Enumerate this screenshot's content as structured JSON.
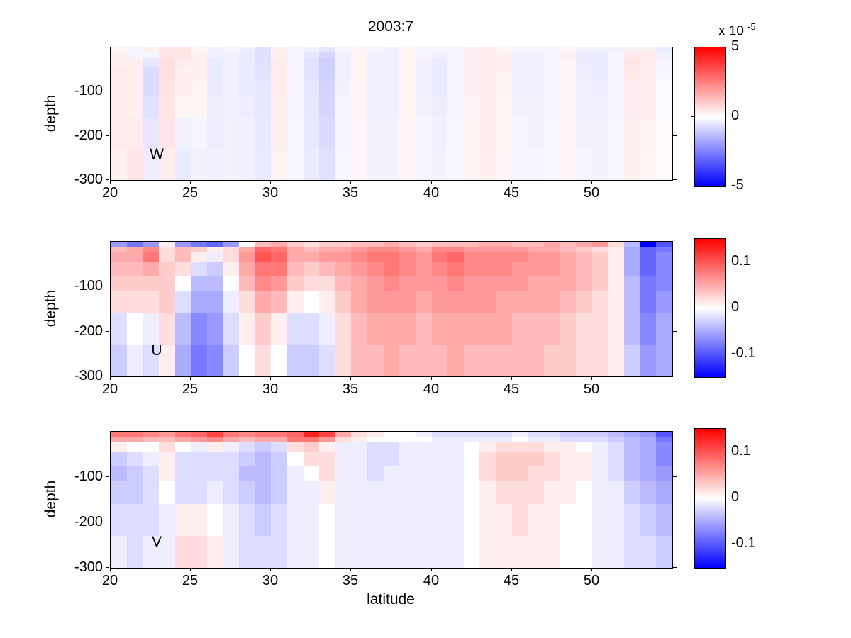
{
  "figure": {
    "background": "#ffffff",
    "axis_color": "#000000",
    "text_color": "#000000"
  },
  "colormap": {
    "positive": "#ff0000",
    "zero": "#ffffff",
    "negative": "#0000ff"
  },
  "chart_data": [
    {
      "type": "heatmap",
      "name": "W",
      "panel_label": "W",
      "title": "2003:7",
      "ylabel": "depth",
      "x_tick_labels": [
        "20",
        "25",
        "30",
        "35",
        "40",
        "45",
        "50"
      ],
      "x_tick_values": [
        20,
        25,
        30,
        35,
        40,
        45,
        50
      ],
      "y_tick_labels": [
        "-100",
        "-200",
        "-300"
      ],
      "y_tick_values": [
        -100,
        -200,
        -300
      ],
      "lat_edges": [
        20,
        55
      ],
      "depth_range": [
        0,
        -300
      ],
      "depth_edges": [
        0,
        -12,
        -24,
        -45,
        -75,
        -110,
        -160,
        -230,
        -300
      ],
      "value_units": "1e-5",
      "colorbar": {
        "clim": [
          -5,
          5
        ],
        "tick_labels": [
          "5",
          "0",
          "-5"
        ],
        "tick_values": [
          5,
          0,
          -5
        ],
        "exponent_label": {
          "prefix": "x 10",
          "exponent": "-5"
        }
      },
      "values": [
        [
          0.2,
          -0.2,
          0.3,
          0.5,
          0.5,
          0.2,
          -0.3,
          -0.2,
          -0.3,
          -0.6,
          0.3,
          -0.2,
          -0.3,
          -0.5,
          -0.2,
          0.2,
          -0.2,
          -0.3,
          0.2,
          -0.2,
          -0.2,
          -0.2,
          0.3,
          0.4,
          0.2,
          -0.2,
          -0.2,
          -0.2,
          0.2,
          -0.3,
          -0.3,
          -0.3,
          0.3,
          0.3,
          -0.4
        ],
        [
          0.3,
          -0.2,
          -0.2,
          0.5,
          0.5,
          0.3,
          -0.3,
          -0.3,
          -0.4,
          -0.6,
          0.3,
          -0.2,
          -0.5,
          -0.8,
          -0.3,
          0.2,
          -0.3,
          -0.3,
          0.2,
          -0.2,
          -0.3,
          -0.2,
          0.3,
          0.4,
          0.3,
          -0.3,
          -0.3,
          -0.2,
          0.3,
          -0.4,
          -0.4,
          -0.2,
          0.4,
          0.4,
          -0.3
        ],
        [
          0.3,
          0.3,
          -0.5,
          0.6,
          0.4,
          0.3,
          -0.4,
          -0.3,
          -0.4,
          -0.6,
          0.4,
          -0.2,
          -0.6,
          -0.95,
          -0.3,
          0.2,
          -0.3,
          -0.3,
          0.2,
          -0.3,
          -0.4,
          -0.2,
          0.3,
          0.4,
          0.3,
          -0.3,
          -0.3,
          -0.2,
          0.2,
          -0.4,
          -0.4,
          -0.2,
          0.5,
          0.35,
          -0.2
        ],
        [
          0.4,
          0.3,
          -0.7,
          0.6,
          0.3,
          0.3,
          -0.4,
          -0.3,
          -0.4,
          -0.55,
          0.4,
          -0.2,
          -0.55,
          -0.9,
          -0.3,
          0.2,
          -0.3,
          -0.3,
          0.2,
          -0.3,
          -0.4,
          -0.2,
          0.3,
          0.4,
          0.25,
          -0.3,
          -0.3,
          -0.2,
          0.2,
          -0.35,
          -0.4,
          -0.2,
          0.45,
          0.3,
          -0.15
        ],
        [
          0.4,
          0.3,
          -0.7,
          0.55,
          0.3,
          0.2,
          -0.4,
          -0.3,
          -0.4,
          -0.5,
          0.4,
          -0.2,
          -0.5,
          -0.85,
          -0.25,
          0.2,
          -0.3,
          -0.3,
          0.2,
          -0.3,
          -0.4,
          -0.2,
          0.3,
          0.4,
          0.25,
          -0.3,
          -0.3,
          -0.2,
          0.2,
          -0.3,
          -0.35,
          -0.2,
          0.4,
          0.3,
          -0.1
        ],
        [
          0.4,
          0.3,
          -0.6,
          0.5,
          0.2,
          0.2,
          -0.35,
          -0.3,
          -0.35,
          -0.5,
          0.3,
          -0.2,
          -0.5,
          -0.8,
          -0.2,
          0.2,
          -0.3,
          -0.3,
          0.2,
          -0.25,
          -0.35,
          -0.2,
          0.25,
          0.35,
          0.2,
          -0.25,
          -0.25,
          -0.2,
          0.2,
          -0.3,
          -0.3,
          -0.2,
          0.35,
          0.3,
          -0.1
        ],
        [
          0.4,
          0.4,
          -0.5,
          0.5,
          -0.25,
          -0.2,
          -0.35,
          -0.25,
          -0.3,
          -0.45,
          0.3,
          -0.15,
          -0.45,
          -0.7,
          -0.2,
          0.15,
          -0.25,
          -0.25,
          0.15,
          -0.2,
          -0.3,
          -0.15,
          0.25,
          0.35,
          0.2,
          -0.2,
          -0.25,
          -0.15,
          0.15,
          -0.25,
          -0.25,
          -0.15,
          0.3,
          0.25,
          0.1
        ],
        [
          0.3,
          0.5,
          -0.35,
          0.35,
          -0.4,
          -0.25,
          -0.3,
          -0.25,
          -0.3,
          -0.4,
          0.25,
          -0.15,
          -0.4,
          -0.6,
          -0.15,
          0.15,
          -0.25,
          -0.25,
          0.15,
          -0.2,
          -0.25,
          -0.15,
          0.25,
          0.3,
          0.15,
          -0.2,
          -0.2,
          -0.15,
          0.15,
          -0.2,
          -0.25,
          -0.15,
          0.3,
          0.2,
          0.1
        ]
      ]
    },
    {
      "type": "heatmap",
      "name": "U",
      "panel_label": "U",
      "ylabel": "depth",
      "x_tick_labels": [
        "20",
        "25",
        "30",
        "35",
        "40",
        "45",
        "50"
      ],
      "x_tick_values": [
        20,
        25,
        30,
        35,
        40,
        45,
        50
      ],
      "y_tick_labels": [
        "-100",
        "-200",
        "-300"
      ],
      "y_tick_values": [
        -100,
        -200,
        -300
      ],
      "lat_edges": [
        20,
        55
      ],
      "depth_range": [
        0,
        -300
      ],
      "depth_edges": [
        0,
        -12,
        -24,
        -45,
        -75,
        -110,
        -160,
        -230,
        -300
      ],
      "value_units": "m/s",
      "colorbar": {
        "clim": [
          -0.15,
          0.15
        ],
        "tick_labels": [
          "0.1",
          "0",
          "-0.1"
        ],
        "tick_values": [
          0.1,
          0,
          -0.1
        ]
      },
      "values": [
        [
          -0.06,
          -0.08,
          -0.06,
          0.01,
          -0.06,
          -0.08,
          -0.09,
          -0.06,
          0.0,
          0.04,
          0.05,
          0.03,
          0.02,
          0.03,
          0.03,
          0.04,
          0.04,
          0.05,
          0.04,
          0.03,
          0.04,
          0.04,
          0.04,
          0.05,
          0.05,
          0.04,
          0.04,
          0.05,
          0.04,
          0.05,
          0.06,
          0.02,
          -0.04,
          -0.15,
          -0.1
        ],
        [
          0.04,
          0.05,
          0.07,
          0.02,
          0.04,
          0.03,
          0.01,
          0.02,
          0.05,
          0.09,
          0.08,
          0.05,
          0.04,
          0.05,
          0.05,
          0.06,
          0.07,
          0.07,
          0.06,
          0.05,
          0.07,
          0.07,
          0.06,
          0.06,
          0.06,
          0.06,
          0.05,
          0.05,
          0.04,
          0.03,
          0.02,
          0.01,
          -0.05,
          -0.09,
          -0.08
        ],
        [
          0.05,
          0.05,
          0.08,
          0.02,
          0.04,
          0.01,
          -0.01,
          0.02,
          0.06,
          0.1,
          0.09,
          0.05,
          0.05,
          0.06,
          0.06,
          0.07,
          0.08,
          0.08,
          0.07,
          0.06,
          0.08,
          0.09,
          0.07,
          0.07,
          0.07,
          0.07,
          0.06,
          0.06,
          0.05,
          0.04,
          0.03,
          0.01,
          -0.05,
          -0.09,
          -0.07
        ],
        [
          0.04,
          0.04,
          0.05,
          0.03,
          0.02,
          -0.02,
          -0.03,
          0.01,
          0.05,
          0.08,
          0.08,
          0.04,
          0.03,
          0.04,
          0.05,
          0.06,
          0.07,
          0.08,
          0.07,
          0.06,
          0.07,
          0.08,
          0.07,
          0.07,
          0.07,
          0.06,
          0.06,
          0.06,
          0.05,
          0.04,
          0.03,
          0.01,
          -0.05,
          -0.09,
          -0.07
        ],
        [
          0.03,
          0.03,
          0.03,
          0.03,
          0.0,
          -0.04,
          -0.04,
          0.0,
          0.04,
          0.07,
          0.06,
          0.03,
          0.02,
          0.02,
          0.04,
          0.05,
          0.06,
          0.07,
          0.06,
          0.06,
          0.06,
          0.07,
          0.06,
          0.06,
          0.06,
          0.06,
          0.05,
          0.05,
          0.05,
          0.04,
          0.03,
          0.01,
          -0.04,
          -0.08,
          -0.07
        ],
        [
          0.02,
          0.02,
          0.02,
          0.03,
          -0.02,
          -0.05,
          -0.05,
          -0.01,
          0.02,
          0.05,
          0.04,
          0.01,
          0.0,
          0.01,
          0.03,
          0.05,
          0.06,
          0.06,
          0.06,
          0.05,
          0.06,
          0.06,
          0.06,
          0.06,
          0.05,
          0.05,
          0.05,
          0.05,
          0.04,
          0.03,
          0.02,
          0.01,
          -0.04,
          -0.08,
          -0.06
        ],
        [
          -0.02,
          0.0,
          -0.01,
          0.02,
          -0.04,
          -0.07,
          -0.06,
          -0.02,
          0.01,
          0.03,
          0.01,
          -0.02,
          -0.02,
          -0.01,
          0.02,
          0.04,
          0.05,
          0.05,
          0.05,
          0.04,
          0.05,
          0.05,
          0.05,
          0.05,
          0.05,
          0.04,
          0.04,
          0.04,
          0.03,
          0.02,
          0.02,
          0.01,
          -0.04,
          -0.07,
          -0.05
        ],
        [
          -0.03,
          -0.01,
          -0.02,
          0.01,
          -0.05,
          -0.08,
          -0.07,
          -0.03,
          0.0,
          0.02,
          0.0,
          -0.03,
          -0.03,
          -0.02,
          0.02,
          0.04,
          0.04,
          0.05,
          0.04,
          0.04,
          0.04,
          0.05,
          0.04,
          0.04,
          0.04,
          0.04,
          0.04,
          0.03,
          0.03,
          0.02,
          0.02,
          0.01,
          -0.03,
          -0.06,
          -0.05
        ]
      ]
    },
    {
      "type": "heatmap",
      "name": "V",
      "panel_label": "V",
      "ylabel": "depth",
      "xlabel": "latitude",
      "x_tick_labels": [
        "20",
        "25",
        "30",
        "35",
        "40",
        "45",
        "50"
      ],
      "x_tick_values": [
        20,
        25,
        30,
        35,
        40,
        45,
        50
      ],
      "y_tick_labels": [
        "-100",
        "-200",
        "-300"
      ],
      "y_tick_values": [
        -100,
        -200,
        -300
      ],
      "lat_edges": [
        20,
        55
      ],
      "depth_range": [
        0,
        -300
      ],
      "depth_edges": [
        0,
        -12,
        -24,
        -45,
        -75,
        -110,
        -160,
        -230,
        -300
      ],
      "value_units": "m/s",
      "colorbar": {
        "clim": [
          -0.15,
          0.15
        ],
        "tick_labels": [
          "0.1",
          "0",
          "-0.1"
        ],
        "tick_values": [
          0.1,
          0,
          -0.1
        ]
      },
      "values": [
        [
          0.08,
          0.08,
          0.07,
          0.06,
          0.08,
          0.09,
          0.11,
          0.08,
          0.07,
          0.08,
          0.08,
          0.09,
          0.13,
          0.11,
          0.05,
          0.02,
          0.01,
          0.0,
          0.0,
          -0.01,
          -0.02,
          -0.02,
          -0.02,
          -0.02,
          -0.02,
          -0.01,
          -0.02,
          -0.02,
          -0.03,
          -0.03,
          -0.03,
          -0.04,
          -0.05,
          -0.06,
          -0.1
        ],
        [
          0.05,
          0.05,
          0.04,
          0.04,
          0.05,
          0.06,
          0.07,
          0.05,
          0.04,
          0.05,
          0.05,
          0.08,
          0.08,
          0.06,
          0.02,
          0.01,
          0.0,
          0.0,
          0.0,
          0.0,
          -0.01,
          -0.01,
          -0.01,
          -0.01,
          -0.01,
          0.0,
          -0.01,
          -0.01,
          -0.02,
          -0.02,
          -0.02,
          -0.03,
          -0.04,
          -0.05,
          -0.08
        ],
        [
          0.01,
          0.0,
          0.0,
          0.02,
          0.0,
          -0.01,
          0.01,
          -0.01,
          -0.02,
          -0.03,
          -0.02,
          0.02,
          0.03,
          0.01,
          -0.01,
          -0.01,
          -0.02,
          -0.02,
          -0.01,
          -0.01,
          -0.01,
          -0.01,
          0.0,
          0.01,
          0.02,
          0.02,
          0.02,
          0.01,
          0.01,
          0.0,
          -0.01,
          -0.02,
          -0.04,
          -0.05,
          -0.07
        ],
        [
          -0.03,
          -0.02,
          -0.01,
          0.01,
          -0.02,
          -0.02,
          -0.02,
          -0.02,
          -0.03,
          -0.04,
          -0.03,
          0.0,
          0.02,
          0.02,
          -0.01,
          -0.01,
          -0.02,
          -0.02,
          -0.01,
          -0.01,
          -0.01,
          -0.01,
          0.0,
          0.02,
          0.03,
          0.03,
          0.03,
          0.02,
          0.01,
          0.01,
          -0.01,
          -0.02,
          -0.04,
          -0.05,
          -0.07
        ],
        [
          -0.04,
          -0.03,
          -0.02,
          0.01,
          -0.02,
          -0.02,
          -0.02,
          -0.02,
          -0.04,
          -0.04,
          -0.03,
          -0.01,
          0.0,
          0.02,
          -0.01,
          -0.01,
          -0.02,
          -0.01,
          -0.01,
          -0.01,
          -0.01,
          -0.01,
          0.0,
          0.02,
          0.03,
          0.03,
          0.02,
          0.02,
          0.01,
          0.01,
          -0.01,
          -0.02,
          -0.04,
          -0.05,
          -0.06
        ],
        [
          -0.03,
          -0.03,
          -0.02,
          0.0,
          -0.02,
          -0.02,
          -0.01,
          -0.02,
          -0.03,
          -0.04,
          -0.03,
          -0.01,
          -0.01,
          0.01,
          -0.01,
          -0.01,
          -0.01,
          -0.01,
          -0.01,
          -0.01,
          -0.01,
          -0.01,
          0.0,
          0.01,
          0.02,
          0.02,
          0.02,
          0.01,
          0.01,
          0.0,
          -0.01,
          -0.01,
          -0.03,
          -0.04,
          -0.05
        ],
        [
          -0.02,
          -0.02,
          -0.02,
          -0.01,
          0.01,
          0.01,
          0.0,
          -0.01,
          -0.02,
          -0.03,
          -0.02,
          -0.01,
          -0.01,
          0.0,
          -0.01,
          -0.01,
          -0.01,
          -0.01,
          -0.01,
          -0.01,
          -0.01,
          -0.01,
          0.0,
          0.01,
          0.01,
          0.02,
          0.01,
          0.01,
          0.0,
          0.0,
          -0.01,
          -0.01,
          -0.02,
          -0.03,
          -0.04
        ],
        [
          -0.01,
          -0.02,
          -0.01,
          -0.01,
          0.02,
          0.02,
          0.01,
          -0.01,
          -0.02,
          -0.02,
          -0.02,
          -0.01,
          -0.01,
          0.0,
          -0.01,
          -0.01,
          -0.01,
          -0.01,
          -0.01,
          -0.01,
          -0.01,
          -0.01,
          0.0,
          0.01,
          0.01,
          0.01,
          0.01,
          0.01,
          0.0,
          0.0,
          -0.01,
          -0.01,
          -0.02,
          -0.02,
          -0.03
        ]
      ]
    }
  ]
}
